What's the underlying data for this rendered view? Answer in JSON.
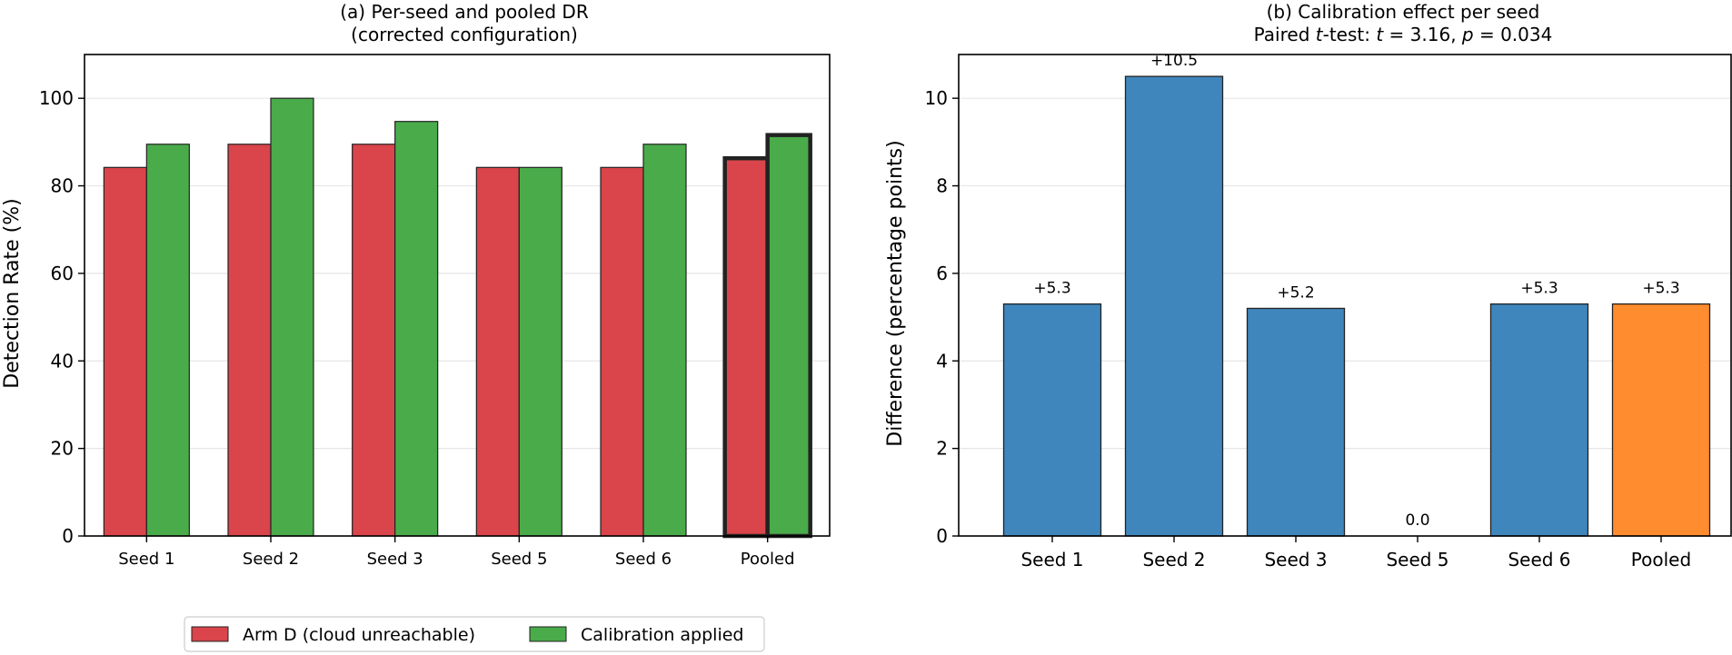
{
  "chart_data": [
    {
      "type": "bar",
      "title": "(a) Per-seed and pooled DR",
      "subtitle": "(corrected configuration)",
      "xlabel": "",
      "ylabel": "Detection Rate (%)",
      "ylim": [
        0,
        110
      ],
      "yticks": [
        0,
        20,
        40,
        60,
        80,
        100
      ],
      "grid": "y",
      "legend_placement": "bottom-center",
      "categories": [
        "Seed 1",
        "Seed 2",
        "Seed 3",
        "Seed 5",
        "Seed 6",
        "Pooled"
      ],
      "series": [
        {
          "name": "Arm D (cloud unreachable)",
          "color": "#d9454a",
          "values": [
            84.2,
            89.5,
            89.5,
            84.2,
            84.2,
            86.3
          ]
        },
        {
          "name": "Calibration applied",
          "color": "#4aab4a",
          "values": [
            89.5,
            100.0,
            94.7,
            84.2,
            89.5,
            91.6
          ]
        }
      ],
      "highlight_category": "Pooled"
    },
    {
      "type": "bar",
      "title": "(b) Calibration effect per seed",
      "subtitle_parts": [
        "Paired ",
        "t",
        "-test: ",
        "t",
        " = 3.16, ",
        "p",
        " = 0.034"
      ],
      "xlabel": "",
      "ylabel": "Difference (percentage points)",
      "ylim": [
        0,
        11
      ],
      "yticks": [
        0,
        2,
        4,
        6,
        8,
        10
      ],
      "grid": "y",
      "categories": [
        "Seed 1",
        "Seed 2",
        "Seed 3",
        "Seed 5",
        "Seed 6",
        "Pooled"
      ],
      "values": [
        5.3,
        10.5,
        5.2,
        0.0,
        5.3,
        5.3
      ],
      "data_labels": [
        "+5.3",
        "+10.5",
        "+5.2",
        "0.0",
        "+5.3",
        "+5.3"
      ],
      "colors": [
        "#3f86bd",
        "#3f86bd",
        "#3f86bd",
        "#3f86bd",
        "#3f86bd",
        "#ff8c2e"
      ]
    }
  ]
}
